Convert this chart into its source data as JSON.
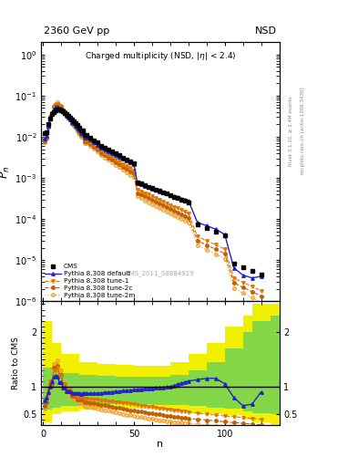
{
  "title_left": "2360 GeV pp",
  "title_right": "NSD",
  "plot_title": "Charged multiplicity",
  "plot_subtitle_normal": "(NSD, |",
  "plot_subtitle_eta": "η",
  "plot_subtitle_end": "| < 2.4)",
  "ylabel_main": "P$_n$",
  "ylabel_ratio": "Ratio to CMS",
  "xlabel": "n",
  "right_label_top": "Rivet 3.1.10, ≥ 3.4M events",
  "right_label_bot": "mcplots.cern.ch [arXiv:1306.3436]",
  "watermark": "CMS_2011_S8884919",
  "orange": "#e07800",
  "dark_orange": "#c06000",
  "light_orange": "#f0a030",
  "blue": "#2222cc",
  "band_yellow": "#f0f000",
  "band_green": "#60d060",
  "legend_labels": [
    "CMS",
    "Pythia 8.308 default",
    "Pythia 8.308 tune-1",
    "Pythia 8.308 tune-2c",
    "Pythia 8.308 tune-2m"
  ]
}
